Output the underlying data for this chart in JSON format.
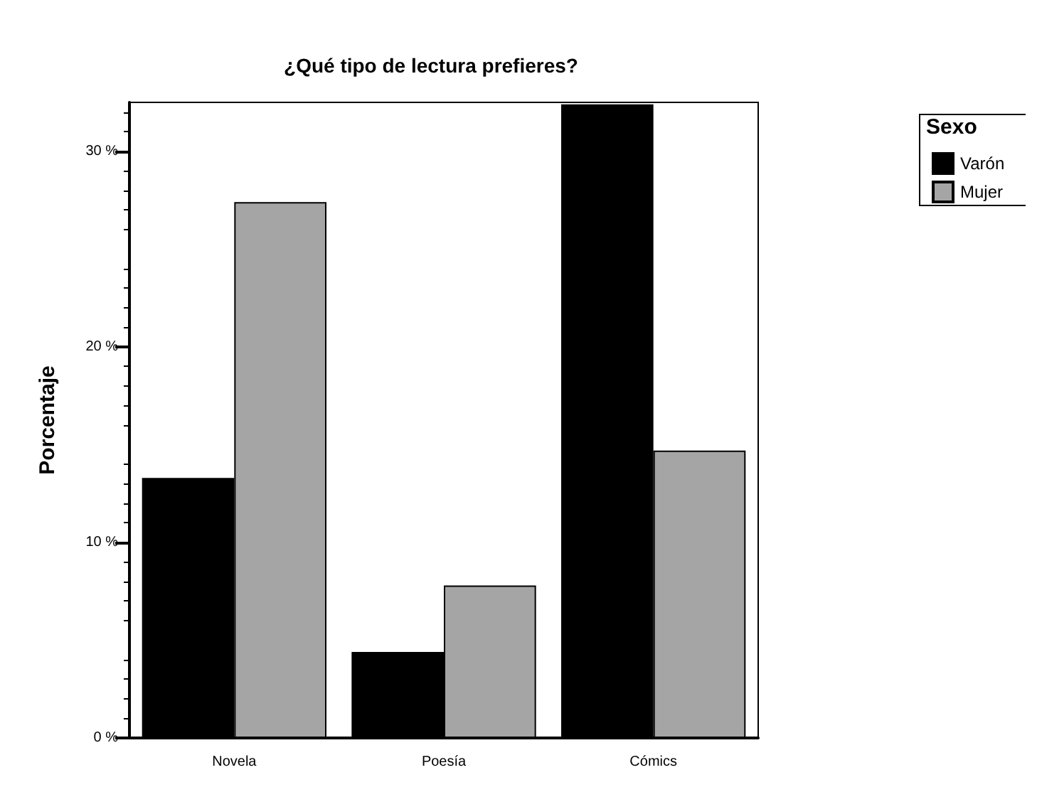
{
  "chart_data": {
    "type": "bar",
    "title": "¿Qué tipo de lectura prefieres?",
    "ylabel": "Porcentaje",
    "legend_title": "Sexo",
    "categories": [
      "Novela",
      "Poesía",
      "Cómics"
    ],
    "series": [
      {
        "name": "Varón",
        "color": "#000000",
        "values": [
          13.3,
          4.4,
          32.4
        ]
      },
      {
        "name": "Mujer",
        "color": "#a5a5a5",
        "values": [
          27.4,
          7.8,
          14.7
        ]
      }
    ],
    "ylim": [
      0,
      32.5
    ],
    "yticks": [
      {
        "value": 0,
        "label": "0 %"
      },
      {
        "value": 10,
        "label": "10 %"
      },
      {
        "value": 20,
        "label": "20 %"
      },
      {
        "value": 30,
        "label": "30 %"
      }
    ],
    "grid": false,
    "legend": "top right"
  }
}
